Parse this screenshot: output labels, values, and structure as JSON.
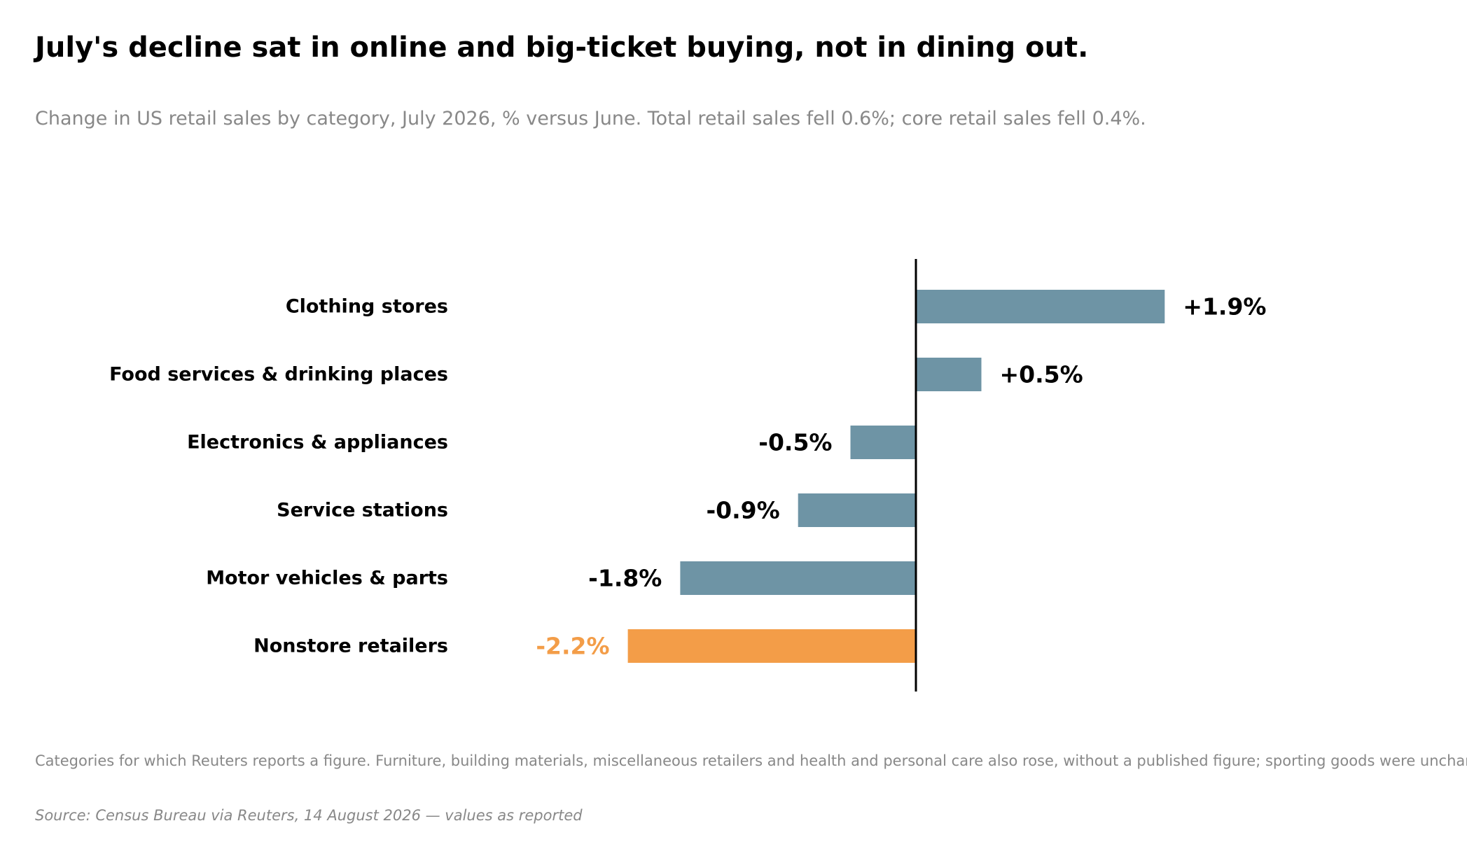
{
  "chart_data": {
    "type": "bar",
    "orientation": "horizontal",
    "title": "July's decline sat in online and big-ticket buying, not in dining out.",
    "subtitle": "Change in US retail sales by category, July 2026, % versus June. Total retail sales fell 0.6%; core retail sales fell 0.4%.",
    "categories": [
      "Clothing stores",
      "Food services & drinking places",
      "Electronics & appliances",
      "Service stations",
      "Motor vehicles & parts",
      "Nonstore retailers"
    ],
    "values": [
      1.9,
      0.5,
      -0.5,
      -0.9,
      -1.8,
      -2.2
    ],
    "value_labels": [
      "+1.9%",
      "+0.5%",
      "-0.5%",
      "-0.9%",
      "-1.8%",
      "-2.2%"
    ],
    "highlight_index": 5,
    "xlabel": "",
    "ylabel": "",
    "xlim": [
      -3.0,
      3.0
    ],
    "grid": false,
    "legend": "none",
    "colors": {
      "bar": "#6e94a5",
      "highlight": "#f39d48",
      "zero_line": "#000000",
      "label": "#000000"
    },
    "note": "Categories for which Reuters reports a figure. Furniture, building materials, miscellaneous retailers and health and personal care also rose, without a published figure; sporting goods were unchanged.",
    "source": "Source: Census Bureau via Reuters, 14 August 2026 — values as reported"
  }
}
